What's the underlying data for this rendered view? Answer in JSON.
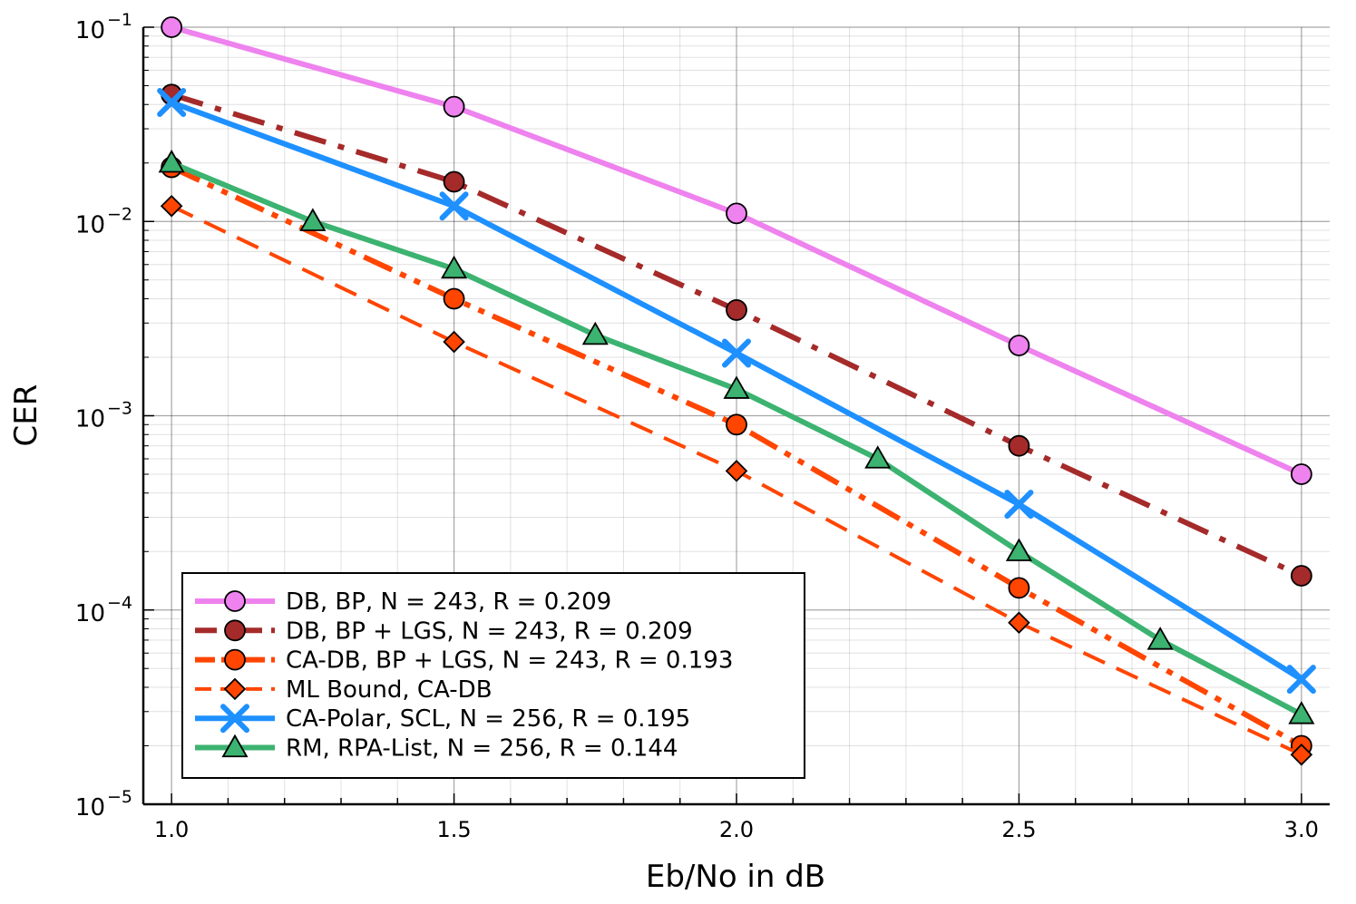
{
  "chart_data": {
    "type": "line",
    "title": "",
    "xlabel": "Eb/No in dB",
    "ylabel": "CER",
    "xlim": [
      0.95,
      3.05
    ],
    "ylim_log10": [
      -5,
      -1
    ],
    "yscale": "log",
    "grid": true,
    "legend_position": "bottom-left",
    "x_ticks": [
      {
        "value": 1.0,
        "label": "1.0"
      },
      {
        "value": 1.5,
        "label": "1.5"
      },
      {
        "value": 2.0,
        "label": "2.0"
      },
      {
        "value": 2.5,
        "label": "2.5"
      },
      {
        "value": 3.0,
        "label": "3.0"
      }
    ],
    "y_ticks": [
      {
        "exp": -1,
        "base": "10",
        "sup": "−1"
      },
      {
        "exp": -2,
        "base": "10",
        "sup": "−2"
      },
      {
        "exp": -3,
        "base": "10",
        "sup": "−3"
      },
      {
        "exp": -4,
        "base": "10",
        "sup": "−4"
      },
      {
        "exp": -5,
        "base": "10",
        "sup": "−5"
      }
    ],
    "series": [
      {
        "name": "DB, BP, N = 243, R = 0.209",
        "color": "#EE82EE",
        "line": "solid",
        "marker": "circle",
        "x": [
          1.0,
          1.5,
          2.0,
          2.5,
          3.0
        ],
        "y": [
          0.1,
          0.039,
          0.011,
          0.0023,
          0.0005
        ]
      },
      {
        "name": "DB, BP + LGS, N = 243, R = 0.209",
        "color": "#A52A2A",
        "line": "dashdot",
        "marker": "circle",
        "x": [
          1.0,
          1.5,
          2.0,
          2.5,
          3.0
        ],
        "y": [
          0.045,
          0.016,
          0.0035,
          0.0007,
          0.00015
        ]
      },
      {
        "name": "CA-DB, BP + LGS, N = 243, R = 0.193",
        "color": "#FF4500",
        "line": "dashdotdot",
        "marker": "circle",
        "x": [
          1.0,
          1.5,
          2.0,
          2.5,
          3.0
        ],
        "y": [
          0.019,
          0.004,
          0.0009,
          0.00013,
          2e-05
        ]
      },
      {
        "name": "ML Bound, CA-DB",
        "color": "#FF4500",
        "line": "dash",
        "marker": "diamond",
        "x": [
          1.0,
          1.5,
          2.0,
          2.5,
          3.0
        ],
        "y": [
          0.012,
          0.0024,
          0.00052,
          8.6e-05,
          1.8e-05
        ]
      },
      {
        "name": "CA-Polar, SCL, N = 256, R = 0.195",
        "color": "#1E90FF",
        "line": "solid",
        "marker": "x",
        "x": [
          1.0,
          1.5,
          2.0,
          2.5,
          3.0
        ],
        "y": [
          0.041,
          0.012,
          0.0021,
          0.00035,
          4.4e-05
        ]
      },
      {
        "name": "RM, RPA-List, N = 256, R = 0.144",
        "color": "#3CB371",
        "line": "solid",
        "marker": "triangle",
        "x": [
          1.0,
          1.25,
          1.5,
          1.75,
          2.0,
          2.25,
          2.5,
          2.75,
          3.0
        ],
        "y": [
          0.02,
          0.01,
          0.0057,
          0.0026,
          0.00137,
          0.0006,
          0.0002,
          7e-05,
          2.9e-05
        ]
      }
    ]
  }
}
